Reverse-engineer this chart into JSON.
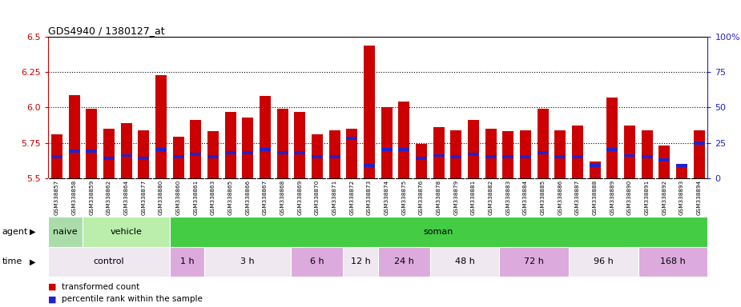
{
  "title": "GDS4940 / 1380127_at",
  "samples": [
    "GSM338857",
    "GSM338858",
    "GSM338859",
    "GSM338862",
    "GSM338864",
    "GSM338877",
    "GSM338880",
    "GSM338860",
    "GSM338861",
    "GSM338863",
    "GSM338865",
    "GSM338866",
    "GSM338867",
    "GSM338868",
    "GSM338869",
    "GSM338870",
    "GSM338871",
    "GSM338872",
    "GSM338873",
    "GSM338874",
    "GSM338875",
    "GSM338876",
    "GSM338878",
    "GSM338879",
    "GSM338881",
    "GSM338882",
    "GSM338883",
    "GSM338884",
    "GSM338885",
    "GSM338886",
    "GSM338887",
    "GSM338888",
    "GSM338889",
    "GSM338890",
    "GSM338891",
    "GSM338892",
    "GSM338893",
    "GSM338894"
  ],
  "transformed_count": [
    5.81,
    6.09,
    5.99,
    5.85,
    5.89,
    5.84,
    6.23,
    5.79,
    5.91,
    5.83,
    5.97,
    5.93,
    6.08,
    5.99,
    5.97,
    5.81,
    5.84,
    5.85,
    6.44,
    6.0,
    6.04,
    5.74,
    5.86,
    5.84,
    5.91,
    5.85,
    5.83,
    5.84,
    5.99,
    5.84,
    5.87,
    5.62,
    6.07,
    5.87,
    5.84,
    5.73,
    5.58,
    5.84
  ],
  "percentile_rank": [
    15,
    19,
    19,
    14,
    16,
    14,
    20,
    15,
    17,
    15,
    18,
    18,
    20,
    18,
    18,
    15,
    15,
    28,
    9,
    20,
    20,
    14,
    16,
    15,
    17,
    15,
    15,
    15,
    18,
    15,
    15,
    9,
    20,
    16,
    15,
    13,
    9,
    25
  ],
  "ylim_left": [
    5.5,
    6.5
  ],
  "ylim_right": [
    0,
    100
  ],
  "yticks_left": [
    5.5,
    5.75,
    6.0,
    6.25,
    6.5
  ],
  "yticks_right": [
    0,
    25,
    50,
    75,
    100
  ],
  "bar_color": "#cc0000",
  "percentile_color": "#2222cc",
  "naive_color": "#aaddaa",
  "vehicle_color": "#bbeeaa",
  "soman_color": "#44cc44",
  "control_color": "#f0e8f0",
  "time_alt_color": "#ddaadd",
  "agent_groups": [
    {
      "label": "naive",
      "start": 0,
      "end": 2
    },
    {
      "label": "vehicle",
      "start": 2,
      "end": 7
    },
    {
      "label": "soman",
      "start": 7,
      "end": 38
    }
  ],
  "time_groups": [
    {
      "label": "control",
      "start": 0,
      "end": 7,
      "alt": 0
    },
    {
      "label": "1 h",
      "start": 7,
      "end": 9,
      "alt": 1
    },
    {
      "label": "3 h",
      "start": 9,
      "end": 14,
      "alt": 0
    },
    {
      "label": "6 h",
      "start": 14,
      "end": 17,
      "alt": 1
    },
    {
      "label": "12 h",
      "start": 17,
      "end": 19,
      "alt": 0
    },
    {
      "label": "24 h",
      "start": 19,
      "end": 22,
      "alt": 1
    },
    {
      "label": "48 h",
      "start": 22,
      "end": 26,
      "alt": 0
    },
    {
      "label": "72 h",
      "start": 26,
      "end": 30,
      "alt": 1
    },
    {
      "label": "96 h",
      "start": 30,
      "end": 34,
      "alt": 0
    },
    {
      "label": "168 h",
      "start": 34,
      "end": 38,
      "alt": 1
    }
  ]
}
